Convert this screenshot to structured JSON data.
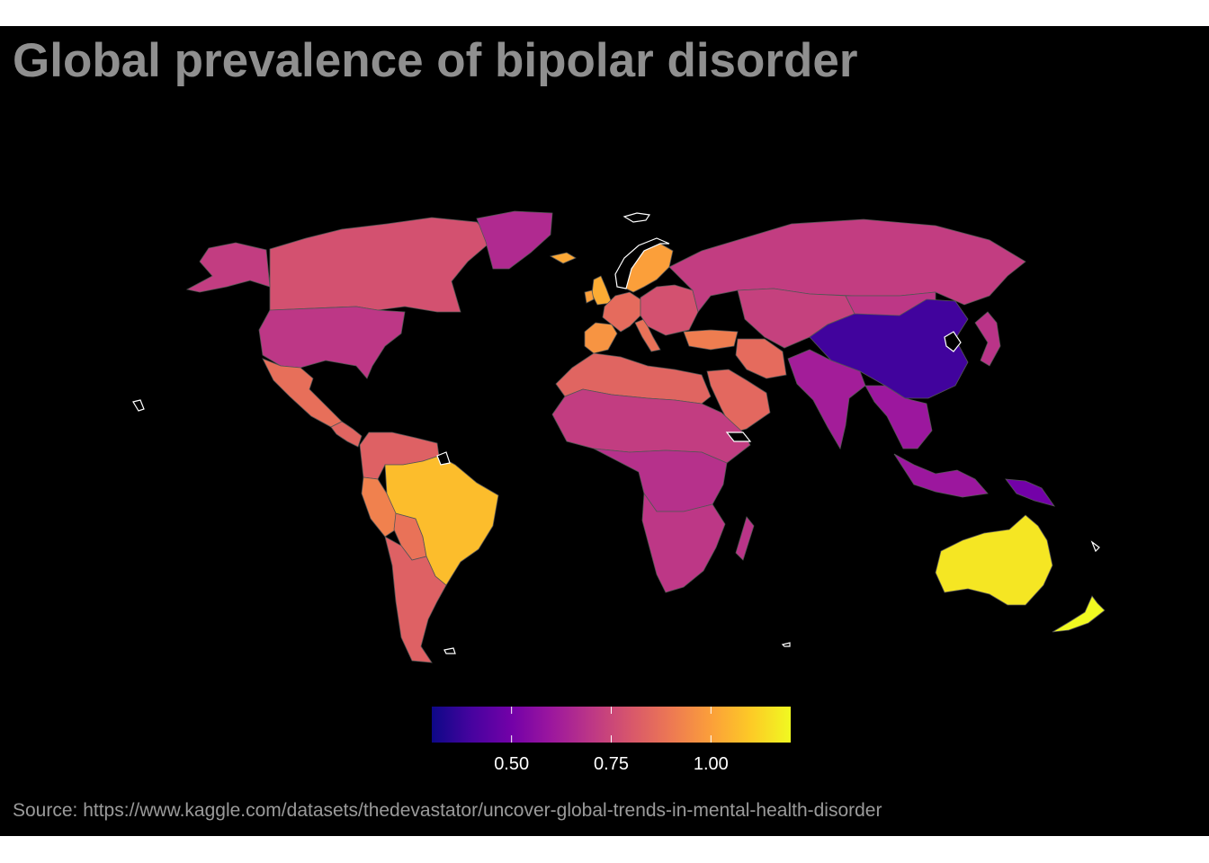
{
  "title": "Global prevalence of bipolar disorder",
  "caption": "Source: https://www.kaggle.com/datasets/thedevastator/uncover-global-trends-in-mental-health-disorder",
  "legend": {
    "scale": "plasma",
    "range": [
      0.3,
      1.2
    ],
    "ticks": [
      {
        "value": 0.5,
        "label": "0.50"
      },
      {
        "value": 0.75,
        "label": "0.75"
      },
      {
        "value": 1.0,
        "label": "1.00"
      }
    ]
  },
  "colors": {
    "background": "#000000",
    "title": "#8f8f8f",
    "caption": "#9a9a9a",
    "border": "#555555",
    "no_data_outline": "#ffffff"
  },
  "regions": [
    {
      "name": "Canada",
      "value": 0.78
    },
    {
      "name": "Alaska",
      "value": 0.72
    },
    {
      "name": "United States",
      "value": 0.7
    },
    {
      "name": "Greenland",
      "value": 0.66
    },
    {
      "name": "Mexico",
      "value": 0.87
    },
    {
      "name": "Central America",
      "value": 0.84
    },
    {
      "name": "Colombia/Venezuela",
      "value": 0.83
    },
    {
      "name": "Peru",
      "value": 0.92
    },
    {
      "name": "Bolivia",
      "value": 0.88
    },
    {
      "name": "Brazil",
      "value": 1.07
    },
    {
      "name": "Argentina/Chile",
      "value": 0.83
    },
    {
      "name": "Iceland",
      "value": 1.02
    },
    {
      "name": "United Kingdom",
      "value": 1.03
    },
    {
      "name": "Ireland",
      "value": 1.0
    },
    {
      "name": "Scandinavia",
      "value": 1.0
    },
    {
      "name": "Iberia",
      "value": 0.97
    },
    {
      "name": "Western Europe",
      "value": 0.86
    },
    {
      "name": "Italy",
      "value": 0.88
    },
    {
      "name": "Eastern Europe",
      "value": 0.78
    },
    {
      "name": "Russia",
      "value": 0.72
    },
    {
      "name": "Turkey",
      "value": 0.91
    },
    {
      "name": "Iran",
      "value": 0.86
    },
    {
      "name": "Arabian Peninsula",
      "value": 0.85
    },
    {
      "name": "Central Asia",
      "value": 0.73
    },
    {
      "name": "Mongolia",
      "value": 0.7
    },
    {
      "name": "China",
      "value": 0.39
    },
    {
      "name": "India",
      "value": 0.62
    },
    {
      "name": "Southeast Asia",
      "value": 0.6
    },
    {
      "name": "Japan",
      "value": 0.69
    },
    {
      "name": "Indonesia",
      "value": 0.6
    },
    {
      "name": "Papua New Guinea",
      "value": 0.5
    },
    {
      "name": "North Africa",
      "value": 0.84
    },
    {
      "name": "Sahel",
      "value": 0.72
    },
    {
      "name": "Central Africa",
      "value": 0.68
    },
    {
      "name": "Southern Africa",
      "value": 0.7
    },
    {
      "name": "Madagascar",
      "value": 0.69
    },
    {
      "name": "Australia",
      "value": 1.16
    },
    {
      "name": "New Zealand",
      "value": 1.2
    }
  ]
}
